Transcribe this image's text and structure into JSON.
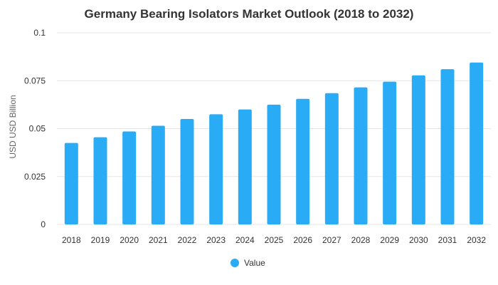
{
  "chart_data": {
    "type": "bar",
    "title": "Germany Bearing Isolators Market Outlook (2018 to 2032)",
    "ylabel": "USD USD Billion",
    "xlabel": "",
    "ylim": [
      0,
      0.1
    ],
    "yticks": [
      "0",
      "0.025",
      "0.05",
      "0.075",
      "0.1"
    ],
    "ytick_values": [
      0,
      0.025,
      0.05,
      0.075,
      0.1
    ],
    "grid": true,
    "legend_position": "bottom",
    "categories": [
      "2018",
      "2019",
      "2020",
      "2021",
      "2022",
      "2023",
      "2024",
      "2025",
      "2026",
      "2027",
      "2028",
      "2029",
      "2030",
      "2031",
      "2032"
    ],
    "series": [
      {
        "name": "Value",
        "color": "#29abf5",
        "values": [
          0.0425,
          0.0455,
          0.0485,
          0.0515,
          0.055,
          0.0575,
          0.06,
          0.0625,
          0.0655,
          0.0685,
          0.0715,
          0.0745,
          0.0778,
          0.081,
          0.0845
        ]
      }
    ]
  }
}
